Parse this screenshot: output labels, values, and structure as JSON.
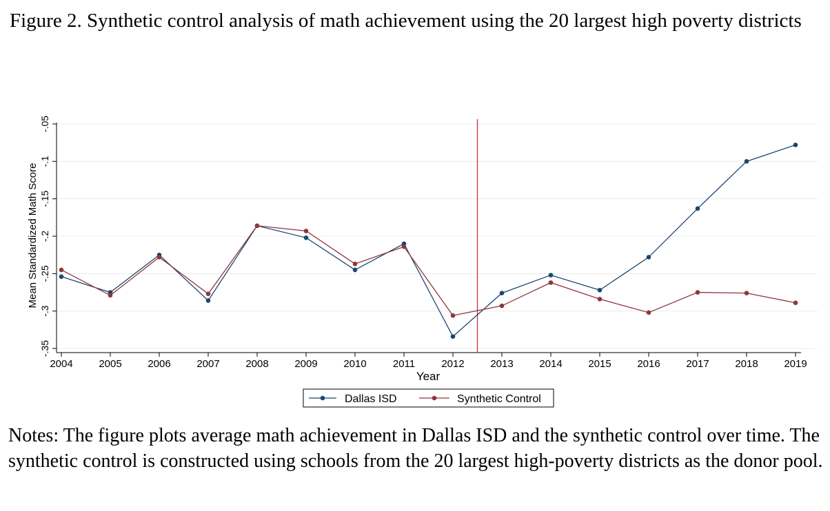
{
  "figure_title": "Figure 2. Synthetic control analysis of math achievement using the 20 largest high poverty districts",
  "notes": "Notes: The figure plots average math achievement in Dallas ISD and the synthetic control over time. The synthetic control is constructed using schools from the 20 largest high-poverty districts as the donor pool.",
  "chart_data": {
    "type": "line",
    "x": [
      2004,
      2005,
      2006,
      2007,
      2008,
      2009,
      2010,
      2011,
      2012,
      2013,
      2014,
      2015,
      2016,
      2017,
      2018,
      2019
    ],
    "series": [
      {
        "name": "Dallas ISD",
        "color": "#1a476f",
        "values": [
          -0.254,
          -0.275,
          -0.225,
          -0.286,
          -0.186,
          -0.202,
          -0.245,
          -0.21,
          -0.334,
          -0.276,
          -0.252,
          -0.272,
          -0.228,
          -0.163,
          -0.1,
          -0.078
        ]
      },
      {
        "name": "Synthetic Control",
        "color": "#90353b",
        "values": [
          -0.245,
          -0.279,
          -0.228,
          -0.277,
          -0.186,
          -0.193,
          -0.237,
          -0.214,
          -0.306,
          -0.293,
          -0.262,
          -0.284,
          -0.302,
          -0.275,
          -0.276,
          -0.289
        ]
      }
    ],
    "xlabel": "Year",
    "ylabel": "Mean Standardized Math Score",
    "xticks": [
      "2004",
      "2005",
      "2006",
      "2007",
      "2008",
      "2009",
      "2010",
      "2011",
      "2012",
      "2013",
      "2014",
      "2015",
      "2016",
      "2017",
      "2018",
      "2019"
    ],
    "yticks": [
      -0.35,
      -0.3,
      -0.25,
      -0.2,
      -0.15,
      -0.1,
      -0.05
    ],
    "ytick_labels": [
      "-.35",
      "-.3",
      "-.25",
      "-.2",
      "-.15",
      "-.1",
      "-.05"
    ],
    "ylim": [
      -0.35,
      -0.05
    ],
    "xlim": [
      2004,
      2019
    ],
    "treatment_line_x": 2012.5,
    "treatment_line_color": "#c0303f",
    "grid": true,
    "legend_position": "bottom-center"
  }
}
